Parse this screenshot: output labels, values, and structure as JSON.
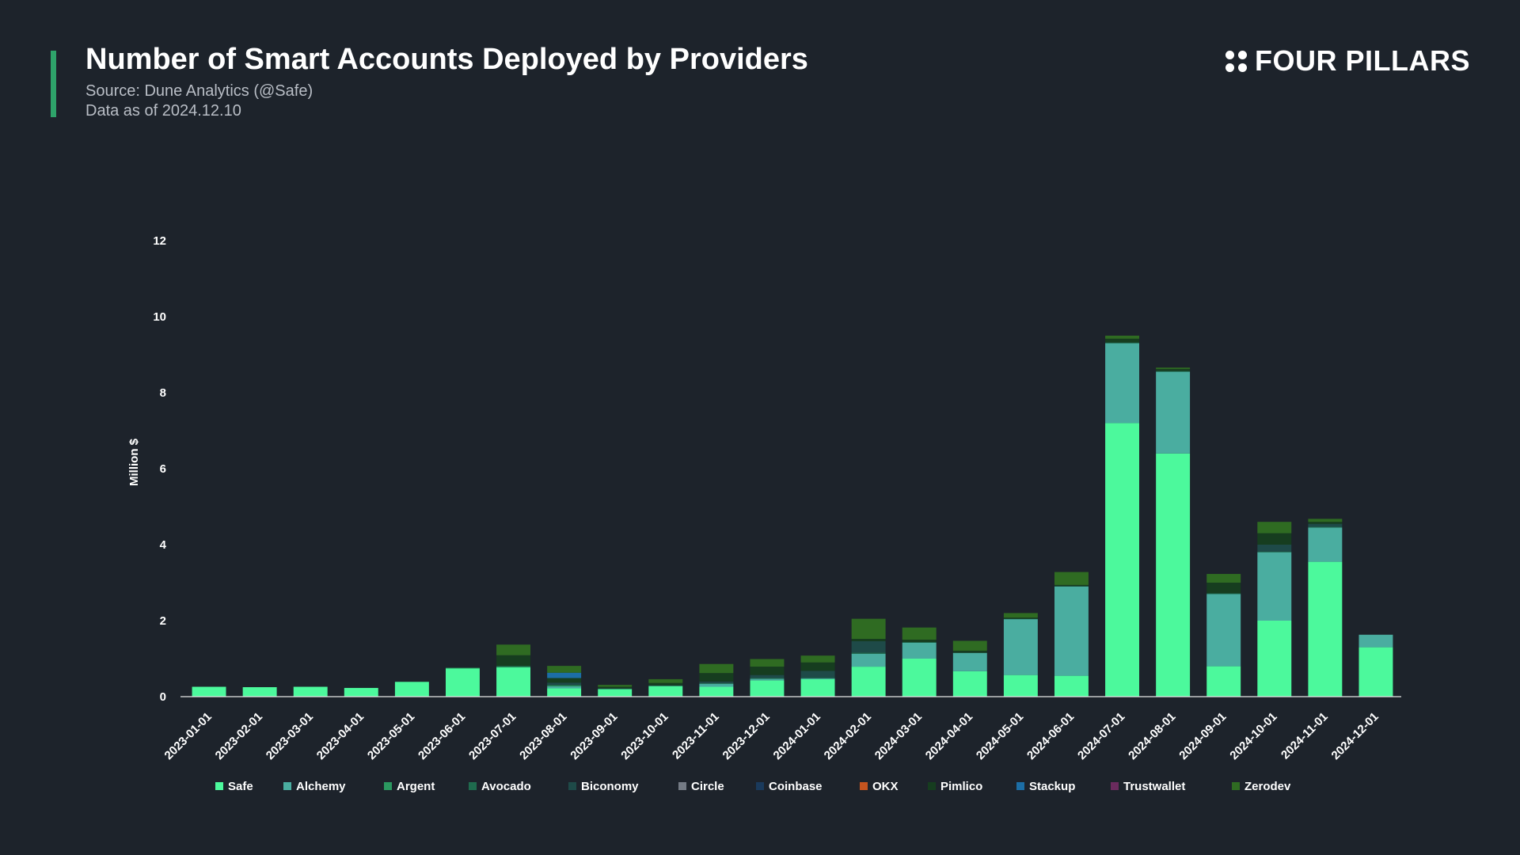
{
  "header": {
    "title": "Number of Smart Accounts Deployed by Providers",
    "source": "Source: Dune Analytics (@Safe)",
    "date_note": "Data as of 2024.12.10",
    "logo_text": "FOUR PILLARS"
  },
  "colors": {
    "background": "#1d232b",
    "accent": "#2ea36a"
  },
  "chart_data": {
    "type": "bar",
    "stacked": true,
    "ylabel": "Million $",
    "ylim": [
      0,
      12
    ],
    "yticks": [
      0,
      2,
      4,
      6,
      8,
      10,
      12
    ],
    "legend_position": "bottom",
    "categories": [
      "2023-01-01",
      "2023-02-01",
      "2023-03-01",
      "2023-04-01",
      "2023-05-01",
      "2023-06-01",
      "2023-07-01",
      "2023-08-01",
      "2023-09-01",
      "2023-10-01",
      "2023-11-01",
      "2023-12-01",
      "2024-01-01",
      "2024-02-01",
      "2024-03-01",
      "2024-04-01",
      "2024-05-01",
      "2024-06-01",
      "2024-07-01",
      "2024-08-01",
      "2024-09-01",
      "2024-10-01",
      "2024-11-01",
      "2024-12-01"
    ],
    "series": [
      {
        "name": "Safe",
        "color": "#4cf99c",
        "values": [
          0.26,
          0.25,
          0.26,
          0.23,
          0.39,
          0.74,
          0.77,
          0.22,
          0.2,
          0.28,
          0.26,
          0.43,
          0.46,
          0.79,
          1.0,
          0.67,
          0.57,
          0.55,
          7.2,
          6.4,
          0.8,
          2.0,
          3.55,
          1.3
        ]
      },
      {
        "name": "Alchemy",
        "color": "#4aada0",
        "values": [
          0,
          0,
          0,
          0,
          0,
          0,
          0,
          0.05,
          0,
          0,
          0.08,
          0.04,
          0.02,
          0.34,
          0.42,
          0.48,
          1.47,
          2.35,
          2.1,
          2.15,
          1.9,
          1.8,
          0.9,
          0.33
        ]
      },
      {
        "name": "Argent",
        "color": "#2b9860",
        "values": [
          0,
          0,
          0,
          0,
          0,
          0.02,
          0.02,
          0.02,
          0,
          0,
          0,
          0,
          0,
          0,
          0,
          0,
          0,
          0,
          0,
          0,
          0,
          0,
          0,
          0
        ]
      },
      {
        "name": "Avocado",
        "color": "#1f6b4e",
        "values": [
          0,
          0,
          0,
          0,
          0,
          0,
          0.02,
          0.02,
          0,
          0,
          0.02,
          0.02,
          0.02,
          0.03,
          0.02,
          0.01,
          0.01,
          0.01,
          0.02,
          0.02,
          0.02,
          0.02,
          0.02,
          0
        ]
      },
      {
        "name": "Biconomy",
        "color": "#1e4a48",
        "values": [
          0,
          0,
          0,
          0,
          0,
          0,
          0,
          0.06,
          0.02,
          0.02,
          0.04,
          0.08,
          0.18,
          0.3,
          0,
          0,
          0,
          0,
          0,
          0,
          0,
          0.18,
          0.08,
          0
        ]
      },
      {
        "name": "Circle",
        "color": "#747b85",
        "values": [
          0,
          0,
          0,
          0,
          0,
          0,
          0,
          0,
          0,
          0,
          0,
          0,
          0,
          0,
          0,
          0,
          0,
          0,
          0,
          0,
          0,
          0,
          0,
          0
        ]
      },
      {
        "name": "Coinbase",
        "color": "#1a3a5c",
        "values": [
          0,
          0,
          0,
          0,
          0,
          0,
          0,
          0,
          0,
          0,
          0,
          0,
          0,
          0,
          0,
          0,
          0,
          0,
          0,
          0,
          0,
          0,
          0,
          0
        ]
      },
      {
        "name": "OKX",
        "color": "#c4541f",
        "values": [
          0,
          0,
          0,
          0,
          0,
          0,
          0,
          0,
          0,
          0,
          0,
          0,
          0,
          0,
          0,
          0,
          0,
          0,
          0,
          0,
          0,
          0,
          0,
          0
        ]
      },
      {
        "name": "Pimlico",
        "color": "#163d1f",
        "values": [
          0,
          0,
          0,
          0,
          0,
          0,
          0.28,
          0.12,
          0.04,
          0.06,
          0.22,
          0.22,
          0.22,
          0.06,
          0.06,
          0.05,
          0.03,
          0.03,
          0.1,
          0.05,
          0.28,
          0.3,
          0.05,
          0
        ]
      },
      {
        "name": "Stackup",
        "color": "#1c6ea6",
        "values": [
          0,
          0,
          0,
          0,
          0,
          0,
          0,
          0.14,
          0,
          0,
          0,
          0,
          0,
          0,
          0,
          0,
          0,
          0,
          0,
          0,
          0,
          0,
          0,
          0
        ]
      },
      {
        "name": "Trustwallet",
        "color": "#6b2b5e",
        "values": [
          0,
          0,
          0,
          0,
          0,
          0,
          0,
          0,
          0,
          0,
          0,
          0,
          0,
          0,
          0,
          0,
          0,
          0,
          0,
          0,
          0,
          0,
          0,
          0
        ]
      },
      {
        "name": "Zerodev",
        "color": "#2f6b22",
        "values": [
          0,
          0,
          0,
          0,
          0,
          0,
          0.28,
          0.18,
          0.05,
          0.1,
          0.24,
          0.2,
          0.18,
          0.53,
          0.32,
          0.26,
          0.12,
          0.34,
          0.08,
          0.04,
          0.23,
          0.3,
          0.08,
          0
        ]
      }
    ]
  }
}
